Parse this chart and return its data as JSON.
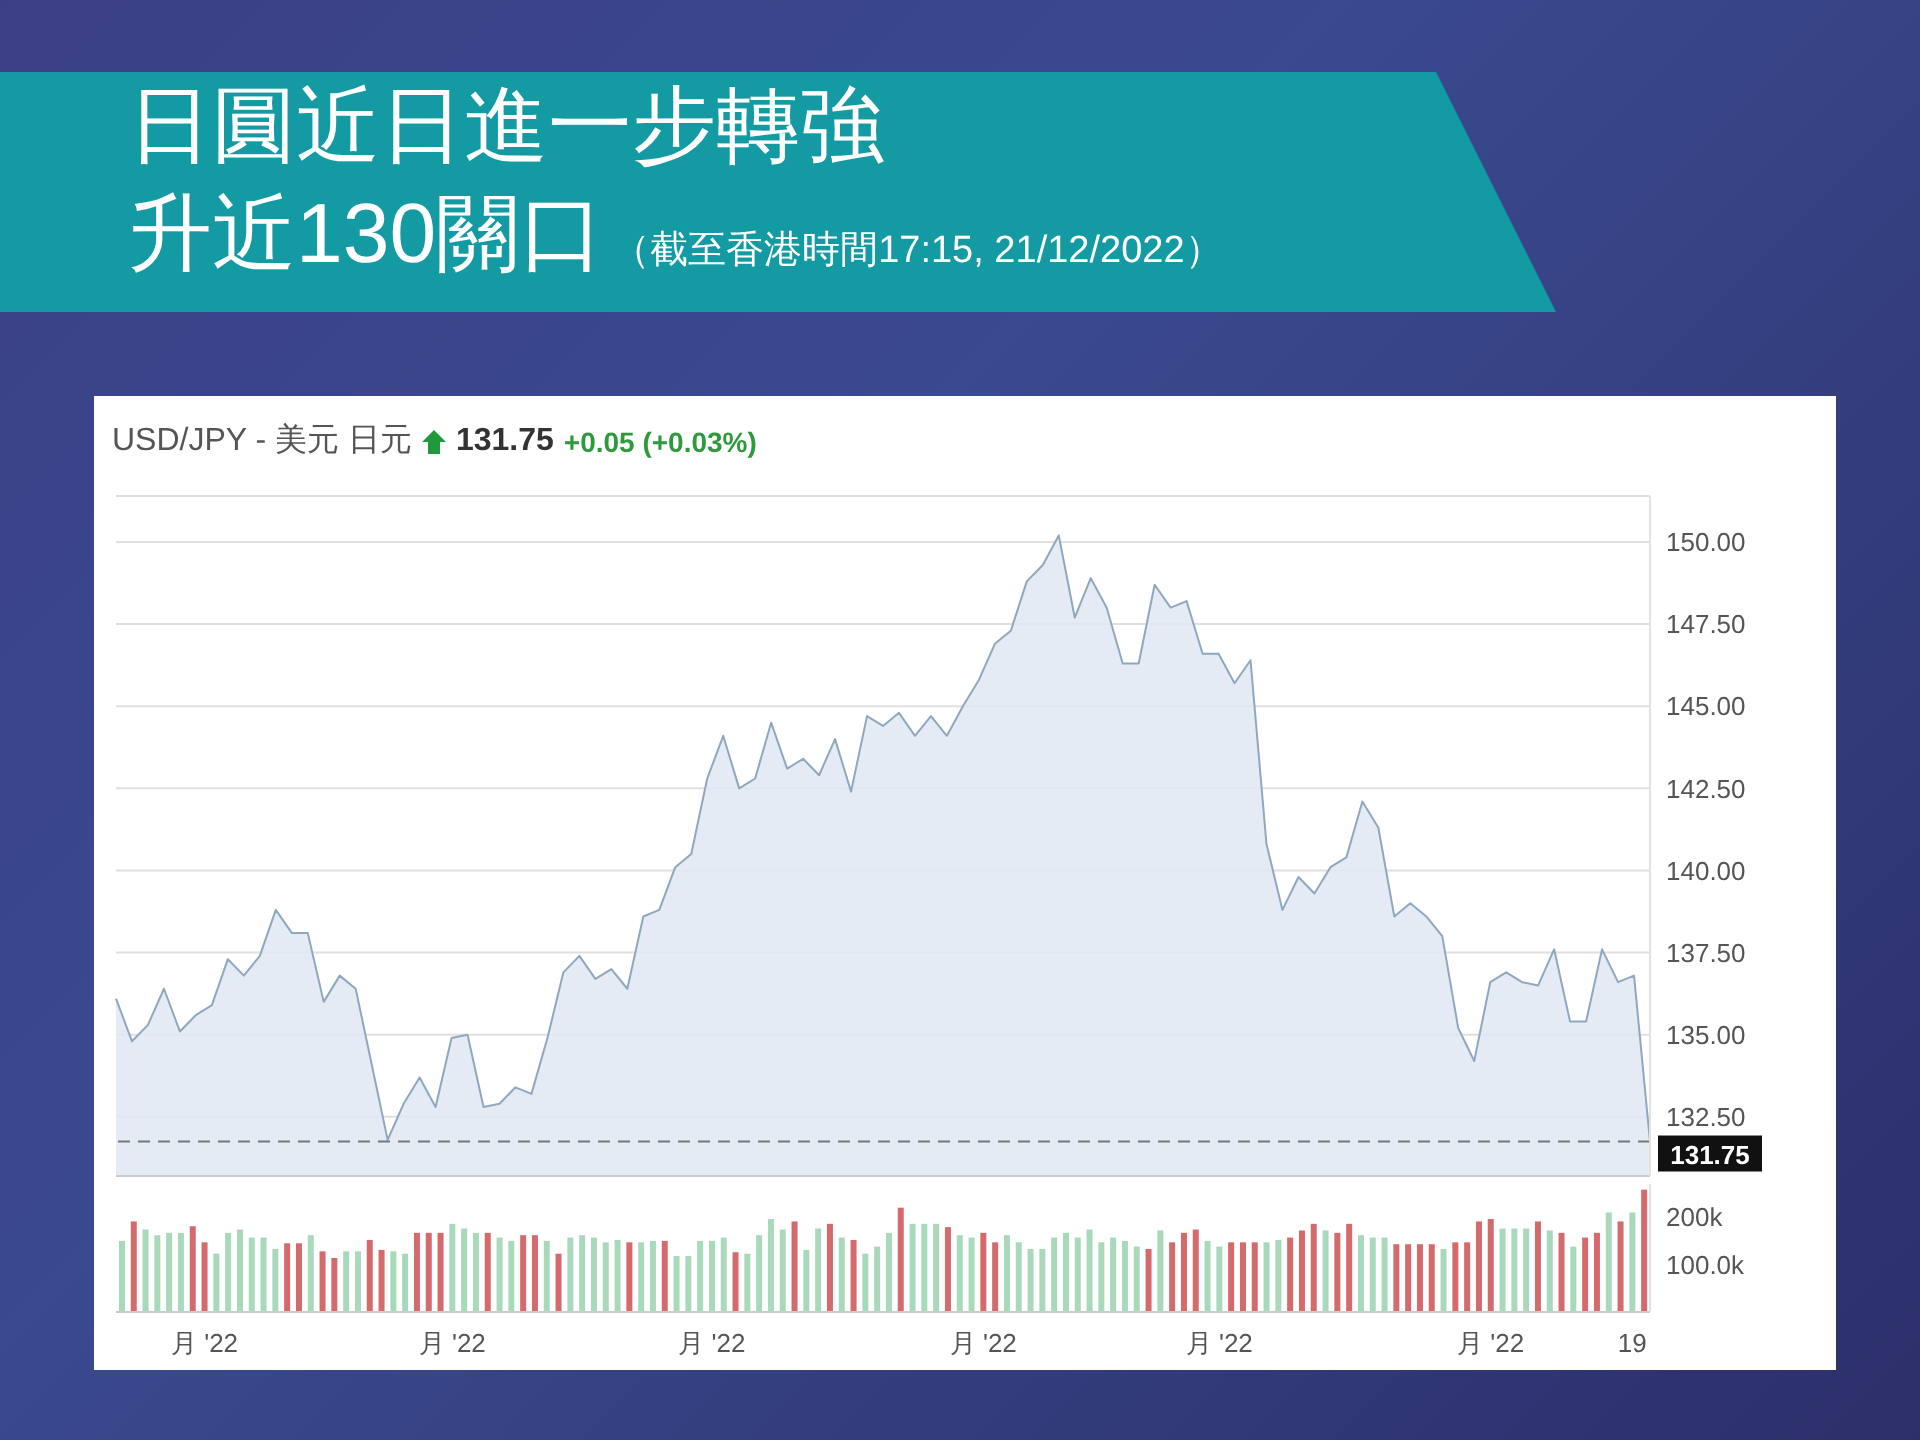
{
  "chart_data": [
    {
      "type": "area",
      "title": "日圓近日進一步轉強",
      "subtitle": "升近130關口",
      "annotations": [
        "（截至香港時間17:15, 21/12/2022）",
        "USD/JPY - 美元 日元",
        "131.75",
        "+0.05 (+0.03%)"
      ],
      "categories": [
        null,
        null,
        null,
        null,
        null,
        null,
        null,
        null,
        null,
        null,
        null,
        null,
        null,
        null,
        null,
        null,
        null,
        null,
        null,
        null,
        null,
        null,
        null,
        null,
        null,
        null,
        null,
        null,
        null,
        null,
        null,
        null,
        null,
        null,
        null,
        null,
        null,
        null,
        null,
        null,
        null,
        null,
        null,
        null,
        null,
        null,
        null,
        null,
        null,
        null,
        null,
        null,
        null,
        null,
        null,
        null,
        null,
        null,
        null,
        null,
        null,
        null,
        null,
        null,
        null,
        null,
        null,
        null,
        null,
        null,
        null,
        null,
        null,
        null,
        null,
        null,
        null,
        null,
        null,
        null,
        null,
        null,
        null,
        null,
        null,
        null,
        null,
        null,
        null,
        null,
        null,
        null,
        null,
        null,
        null,
        null,
        null
      ],
      "series": [
        {
          "color": "#8ea8bf",
          "values": [
            136.1,
            134.8,
            135.3,
            136.4,
            135.1,
            135.6,
            135.9,
            137.3,
            136.8,
            137.4,
            138.8,
            138.1,
            138.1,
            136.0,
            136.8,
            136.4,
            134.1,
            131.8,
            132.9,
            133.7,
            132.8,
            134.9,
            135.0,
            132.8,
            132.9,
            133.4,
            133.2,
            134.9,
            136.9,
            137.4,
            136.7,
            137.0,
            136.4,
            138.6,
            138.8,
            140.1,
            140.5,
            142.8,
            144.1,
            142.5,
            142.8,
            144.5,
            143.1,
            143.4,
            142.9,
            144.0,
            142.4,
            144.7,
            144.4,
            144.8,
            144.1,
            144.7,
            144.1,
            145.0,
            145.8,
            146.9,
            147.3,
            148.8,
            149.3,
            150.2,
            147.7,
            148.9,
            148.0,
            146.3,
            146.3,
            148.7,
            148.0,
            148.2,
            146.6,
            146.6,
            145.7,
            146.4,
            140.8,
            138.8,
            139.8,
            139.3,
            140.1,
            140.4,
            142.1,
            141.3,
            138.6,
            139.0,
            138.6,
            138.0,
            135.2,
            134.2,
            136.6,
            136.9,
            136.6,
            136.5,
            137.6,
            135.4,
            135.4,
            137.6,
            136.6,
            136.8,
            131.75
          ]
        }
      ],
      "ylim": [
        130.7,
        151.4
      ],
      "yticks": [
        {
          "value": 132.5,
          "label": "132.50"
        },
        {
          "value": 135,
          "label": "135.00"
        },
        {
          "value": 137.5,
          "label": "137.50"
        },
        {
          "value": 140,
          "label": "140.00"
        },
        {
          "value": 142.5,
          "label": "142.50"
        },
        {
          "value": 145,
          "label": "145.00"
        },
        {
          "value": 147.5,
          "label": "147.50"
        },
        {
          "value": 150,
          "label": "150.00"
        }
      ],
      "ref_lines": [
        {
          "axis": "y",
          "value": 131.75,
          "label": "131.75",
          "color": "#777777",
          "line_style": "dashed"
        }
      ],
      "grid": "y",
      "tick_labels": "y"
    },
    {
      "type": "bar",
      "categories": [
        null,
        null,
        null,
        null,
        null,
        null,
        null,
        "月 '22",
        null,
        null,
        null,
        null,
        null,
        null,
        null,
        null,
        null,
        null,
        null,
        null,
        null,
        null,
        null,
        null,
        null,
        null,
        null,
        null,
        "月 '22",
        null,
        null,
        null,
        null,
        null,
        null,
        null,
        null,
        null,
        null,
        null,
        null,
        null,
        null,
        null,
        null,
        null,
        null,
        null,
        null,
        null,
        "月 '22",
        null,
        null,
        null,
        null,
        null,
        null,
        null,
        null,
        null,
        null,
        null,
        null,
        null,
        null,
        null,
        null,
        null,
        null,
        null,
        null,
        null,
        null,
        "月 '22",
        null,
        null,
        null,
        null,
        null,
        null,
        null,
        null,
        null,
        null,
        null,
        null,
        null,
        null,
        null,
        null,
        null,
        null,
        null,
        "月 '22",
        null,
        null,
        null,
        null,
        null,
        null,
        null,
        null,
        null,
        null,
        null,
        null,
        null,
        null,
        null,
        null,
        null,
        null,
        null,
        null,
        null,
        null,
        "月 '22",
        null,
        null,
        null,
        null,
        null,
        null,
        null,
        null,
        null,
        null,
        null,
        "19",
        null
      ],
      "values": [
        150,
        191,
        174,
        162,
        167,
        167,
        181,
        147,
        123,
        167,
        174,
        157,
        157,
        133,
        145,
        145,
        162,
        128,
        114,
        128,
        128,
        152,
        131,
        128,
        123,
        167,
        167,
        167,
        186,
        176,
        167,
        167,
        157,
        150,
        162,
        162,
        150,
        123,
        157,
        162,
        157,
        147,
        152,
        147,
        147,
        150,
        150,
        118,
        118,
        150,
        150,
        157,
        126,
        123,
        162,
        196,
        174,
        191,
        131,
        176,
        186,
        157,
        152,
        123,
        138,
        167,
        220,
        186,
        186,
        186,
        179,
        162,
        157,
        167,
        147,
        162,
        147,
        133,
        133,
        157,
        167,
        157,
        174,
        147,
        157,
        150,
        138,
        133,
        172,
        147,
        167,
        174,
        150,
        138,
        147,
        147,
        147,
        147,
        152,
        157,
        172,
        186,
        172,
        167,
        186,
        162,
        157,
        157,
        143,
        143,
        143,
        143,
        133,
        147,
        147,
        191,
        196,
        176,
        176,
        176,
        191,
        172,
        167,
        138,
        157,
        167,
        210,
        191,
        210,
        258
      ],
      "colors": [
        "#a9d9bb",
        "#d46a6c",
        "#a9d9bb",
        "#a9d9bb",
        "#a9d9bb",
        "#a9d9bb",
        "#d46a6c",
        "#d46a6c",
        "#a9d9bb",
        "#a9d9bb",
        "#a9d9bb",
        "#a9d9bb",
        "#a9d9bb",
        "#a9d9bb",
        "#d46a6c",
        "#d46a6c",
        "#a9d9bb",
        "#d46a6c",
        "#d46a6c",
        "#a9d9bb",
        "#a9d9bb",
        "#d46a6c",
        "#d46a6c",
        "#a9d9bb",
        "#a9d9bb",
        "#d46a6c",
        "#d46a6c",
        "#d46a6c",
        "#a9d9bb",
        "#a9d9bb",
        "#a9d9bb",
        "#d46a6c",
        "#a9d9bb",
        "#a9d9bb",
        "#d46a6c",
        "#d46a6c",
        "#a9d9bb",
        "#d46a6c",
        "#a9d9bb",
        "#a9d9bb",
        "#a9d9bb",
        "#a9d9bb",
        "#a9d9bb",
        "#d46a6c",
        "#a9d9bb",
        "#a9d9bb",
        "#d46a6c",
        "#a9d9bb",
        "#a9d9bb",
        "#a9d9bb",
        "#a9d9bb",
        "#a9d9bb",
        "#d46a6c",
        "#a9d9bb",
        "#a9d9bb",
        "#a9d9bb",
        "#a9d9bb",
        "#d46a6c",
        "#a9d9bb",
        "#a9d9bb",
        "#d46a6c",
        "#a9d9bb",
        "#d46a6c",
        "#a9d9bb",
        "#a9d9bb",
        "#a9d9bb",
        "#d46a6c",
        "#a9d9bb",
        "#a9d9bb",
        "#a9d9bb",
        "#d46a6c",
        "#a9d9bb",
        "#a9d9bb",
        "#d46a6c",
        "#d46a6c",
        "#a9d9bb",
        "#a9d9bb",
        "#a9d9bb",
        "#a9d9bb",
        "#a9d9bb",
        "#a9d9bb",
        "#a9d9bb",
        "#a9d9bb",
        "#a9d9bb",
        "#a9d9bb",
        "#a9d9bb",
        "#a9d9bb",
        "#d46a6c",
        "#a9d9bb",
        "#d46a6c",
        "#d46a6c",
        "#d46a6c",
        "#a9d9bb",
        "#a9d9bb",
        "#d46a6c",
        "#d46a6c",
        "#d46a6c",
        "#a9d9bb",
        "#a9d9bb",
        "#d46a6c",
        "#d46a6c",
        "#d46a6c",
        "#a9d9bb",
        "#d46a6c",
        "#d46a6c",
        "#a9d9bb",
        "#a9d9bb",
        "#a9d9bb",
        "#d46a6c",
        "#d46a6c",
        "#d46a6c",
        "#d46a6c",
        "#a9d9bb",
        "#d46a6c",
        "#d46a6c",
        "#d46a6c",
        "#d46a6c",
        "#a9d9bb",
        "#a9d9bb",
        "#a9d9bb",
        "#d46a6c",
        "#a9d9bb",
        "#d46a6c",
        "#a9d9bb",
        "#d46a6c",
        "#d46a6c",
        "#a9d9bb",
        "#d46a6c",
        "#a9d9bb",
        "#d46a6c"
      ],
      "ylim": [
        0,
        270
      ],
      "yticks": [
        {
          "value": 100,
          "label": "100.0k"
        },
        {
          "value": 200,
          "label": "200k"
        }
      ]
    }
  ]
}
